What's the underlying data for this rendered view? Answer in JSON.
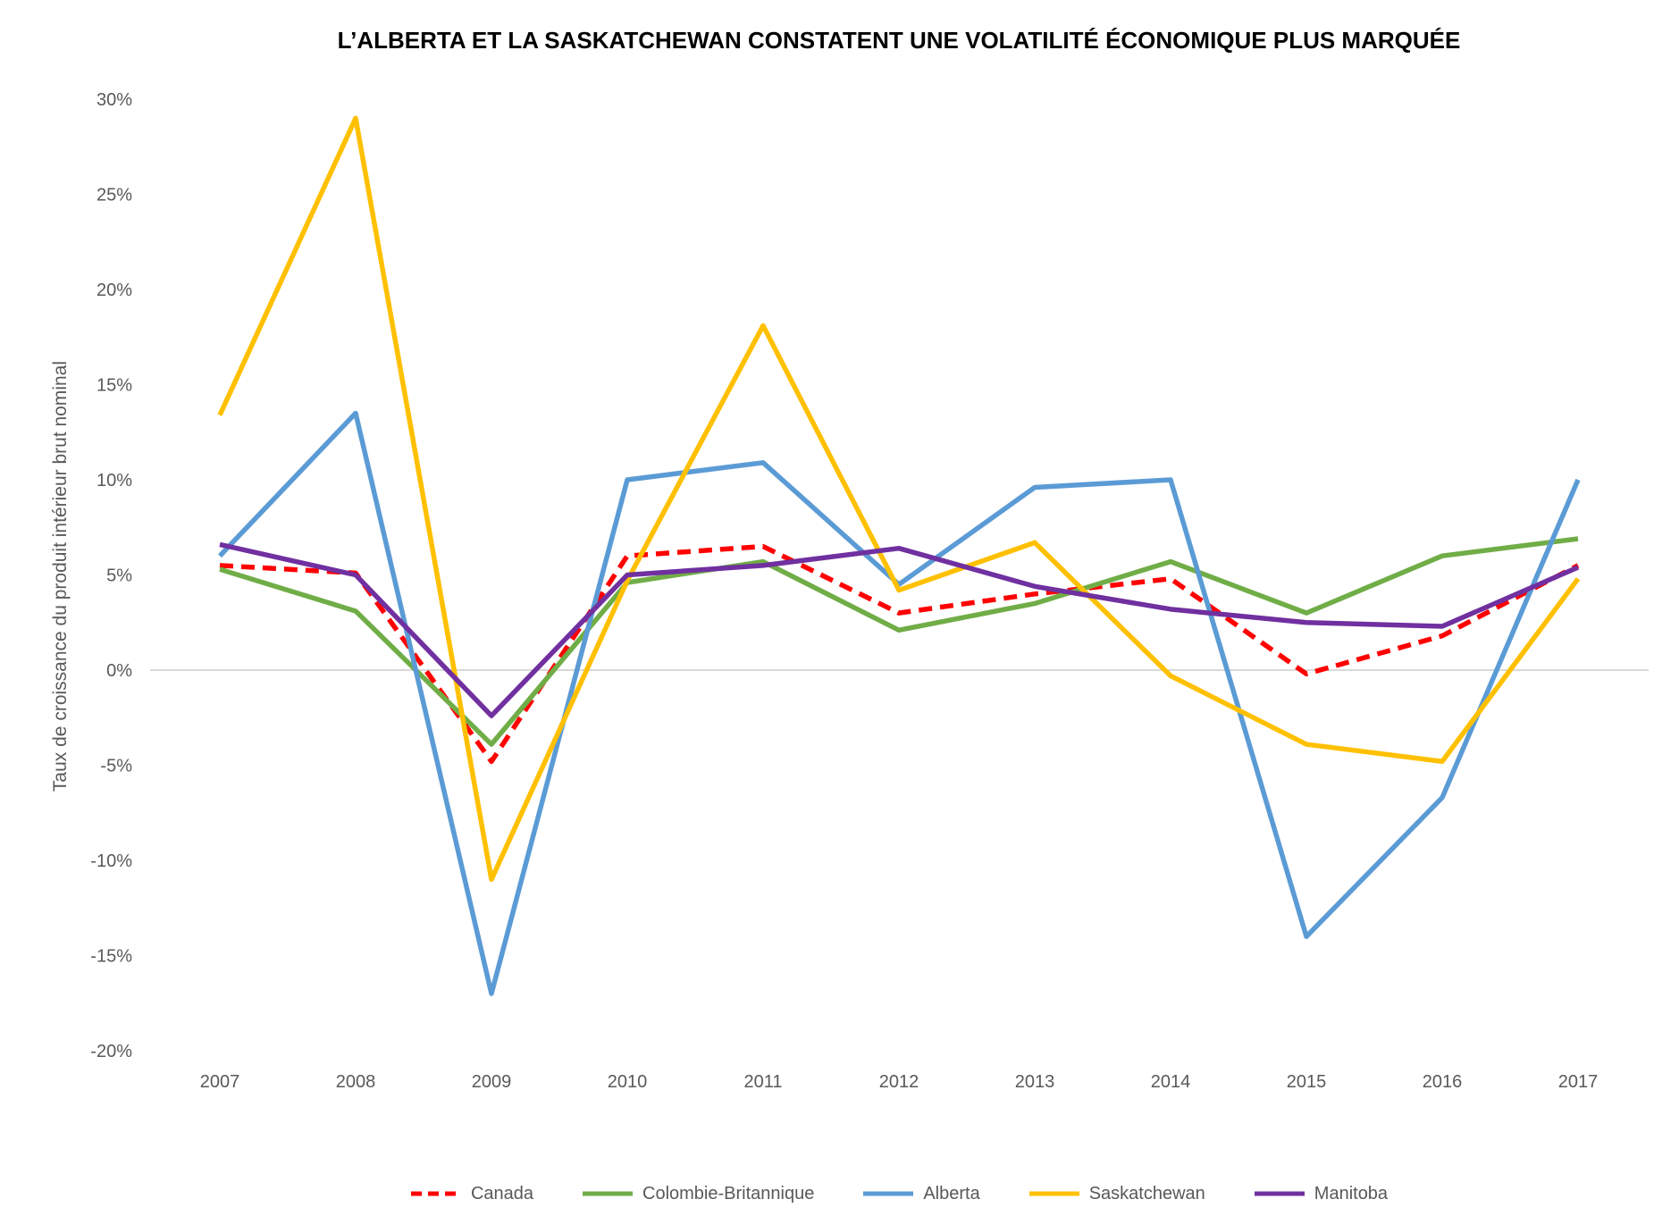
{
  "chart_data": {
    "type": "line",
    "title": "L’ALBERTA ET LA SASKATCHEWAN CONSTATENT UNE VOLATILITÉ ÉCONOMIQUE PLUS MARQUÉE",
    "xlabel": "",
    "ylabel": "Taux de croissance du produit intérieur brut nominal",
    "categories": [
      "2007",
      "2008",
      "2009",
      "2010",
      "2011",
      "2012",
      "2013",
      "2014",
      "2015",
      "2016",
      "2017"
    ],
    "ylim": [
      -20,
      30
    ],
    "y_tick_step": 5,
    "y_tick_suffix": "%",
    "grid": "zero-line-only",
    "zero_line_color": "#D9D9D9",
    "axis_text_color": "#595959",
    "title_color": "#000000",
    "legend_position": "bottom",
    "series": [
      {
        "name": "Canada",
        "color": "#FF0000",
        "dashed": true,
        "values": [
          5.5,
          5.1,
          -4.8,
          6.0,
          6.5,
          3.0,
          4.0,
          4.8,
          -0.2,
          1.8,
          5.5
        ]
      },
      {
        "name": "Colombie-Britannique",
        "color": "#70AD47",
        "dashed": false,
        "values": [
          5.3,
          3.1,
          -3.9,
          4.6,
          5.7,
          2.1,
          3.5,
          5.7,
          3.0,
          6.0,
          6.9
        ]
      },
      {
        "name": "Alberta",
        "color": "#5B9BD5",
        "dashed": false,
        "values": [
          6.0,
          13.5,
          -17.0,
          10.0,
          10.9,
          4.5,
          9.6,
          10.0,
          -14.0,
          -6.7,
          10.0
        ]
      },
      {
        "name": "Saskatchewan",
        "color": "#FFC000",
        "dashed": false,
        "values": [
          13.4,
          29.0,
          -11.0,
          4.7,
          18.1,
          4.2,
          6.7,
          -0.3,
          -3.9,
          -4.8,
          4.8
        ]
      },
      {
        "name": "Manitoba",
        "color": "#7030A0",
        "dashed": false,
        "values": [
          6.6,
          5.0,
          -2.4,
          5.0,
          5.5,
          6.4,
          4.4,
          3.2,
          2.5,
          2.3,
          5.4
        ]
      }
    ]
  }
}
